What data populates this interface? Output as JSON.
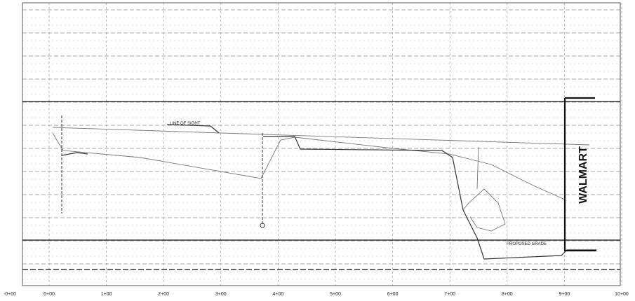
{
  "labels": {
    "line_of_sight": "LINE OF SIGHT",
    "proposed_grade": "PROPOSED GRADE",
    "walmart": "WALMART"
  },
  "stations": [
    "-0+00",
    "0+00",
    "1+00",
    "2+00",
    "3+00",
    "4+00",
    "5+00",
    "6+00",
    "7+00",
    "8+00",
    "9+00",
    "10+00"
  ]
}
